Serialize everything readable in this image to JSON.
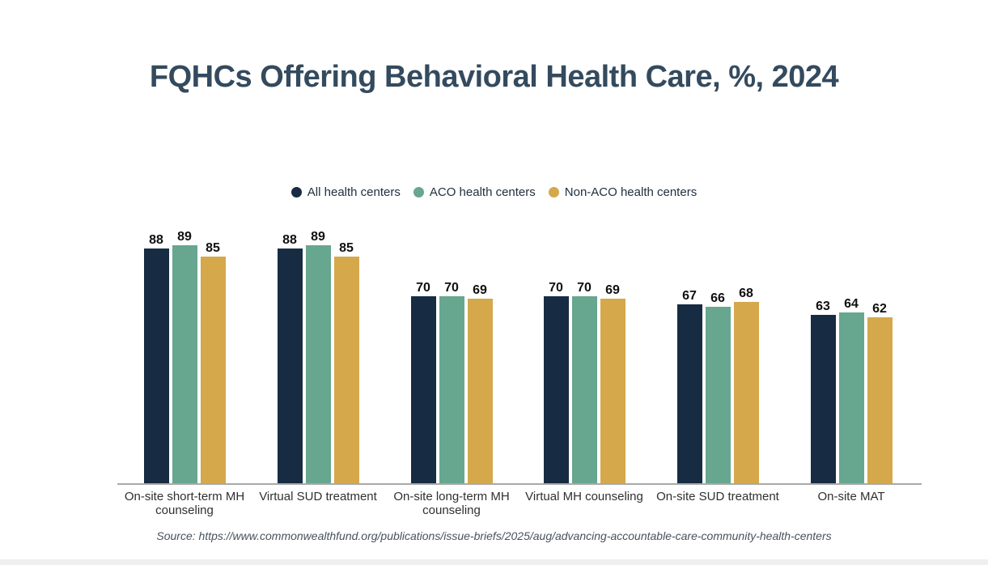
{
  "page": {
    "source": "Source: https://www.commonwealthfund.org/publications/issue-briefs/2025/aug/advancing-accountable-care-community-health-centers",
    "background_color": "#ffffff",
    "bottom_strip_color": "#efefef",
    "title_color": "#344a5e"
  },
  "chart_data": {
    "type": "bar",
    "title": "FQHCs Offering Behavioral Health Care, %, 2024",
    "categories": [
      "On-site short-term MH counseling",
      "Virtual SUD treatment",
      "On-site long-term MH counseling",
      "Virtual MH counseling",
      "On-site SUD treatment",
      "On-site MAT"
    ],
    "series": [
      {
        "name": "All health centers",
        "color": "#172b43",
        "values": [
          88,
          88,
          70,
          70,
          67,
          63
        ]
      },
      {
        "name": "ACO health centers",
        "color": "#67a68f",
        "values": [
          89,
          89,
          70,
          70,
          66,
          64
        ]
      },
      {
        "name": "Non-ACO health centers",
        "color": "#d4a84b",
        "values": [
          85,
          85,
          69,
          69,
          68,
          62
        ]
      }
    ],
    "ylim": [
      0,
      100
    ],
    "grid": false,
    "value_labels": true,
    "legend_position": "top-center",
    "legend_marker": "circle",
    "axis_line_color": "#a9a9a9"
  }
}
